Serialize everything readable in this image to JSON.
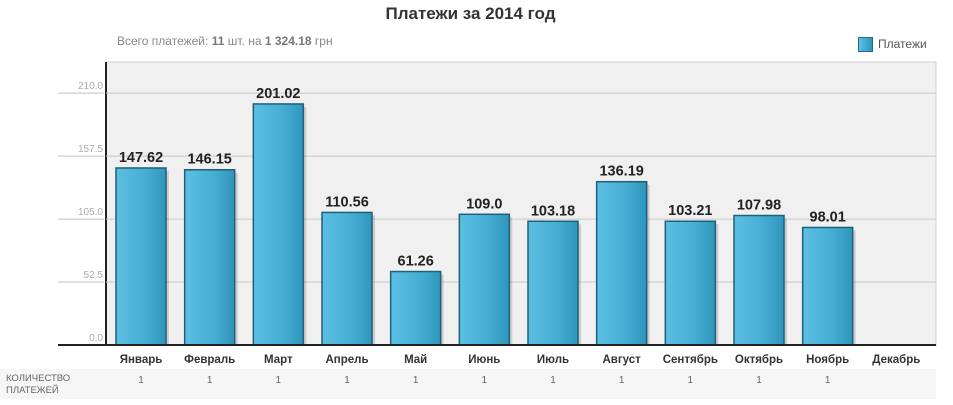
{
  "title": "Платежи за 2014 год",
  "summary": {
    "prefix": "Всего платежей:",
    "count": "11",
    "mid": "шт. на",
    "amount": "1 324.18",
    "currency": "грн"
  },
  "legend": {
    "label": "Платежи",
    "color": "#3aa6cc"
  },
  "count_row": {
    "label": "КОЛИЧЕСТВО ПЛАТЕЖЕЙ",
    "values": [
      "1",
      "1",
      "1",
      "1",
      "1",
      "1",
      "1",
      "1",
      "1",
      "1",
      "1",
      ""
    ]
  },
  "chart_data": {
    "type": "bar",
    "title": "Платежи за 2014 год",
    "categories": [
      "Январь",
      "Февраль",
      "Март",
      "Апрель",
      "Май",
      "Июнь",
      "Июль",
      "Август",
      "Сентябрь",
      "Октябрь",
      "Ноябрь",
      "Декабрь"
    ],
    "series": [
      {
        "name": "Платежи",
        "values": [
          147.62,
          146.15,
          201.02,
          110.56,
          61.26,
          109.0,
          103.18,
          136.19,
          103.21,
          107.98,
          98.01,
          null
        ],
        "labels": [
          "147.62",
          "146.15",
          "201.02",
          "110.56",
          "61.26",
          "109.0",
          "103.18",
          "136.19",
          "103.21",
          "107.98",
          "98.01",
          ""
        ]
      }
    ],
    "y_ticks": [
      0,
      52.5,
      105,
      157.5,
      210
    ],
    "y_tick_labels": [
      "0.0",
      "52.5",
      "105.0",
      "157.5",
      "210.0"
    ],
    "ylim": [
      0,
      236
    ],
    "grid": true,
    "legend_position": "top-right",
    "colors": {
      "bar_light": "#5cc0e2",
      "bar_dark": "#2f95bb",
      "bar_border": "#1f5f7a",
      "plot_bg": "#f0f0f0"
    }
  }
}
